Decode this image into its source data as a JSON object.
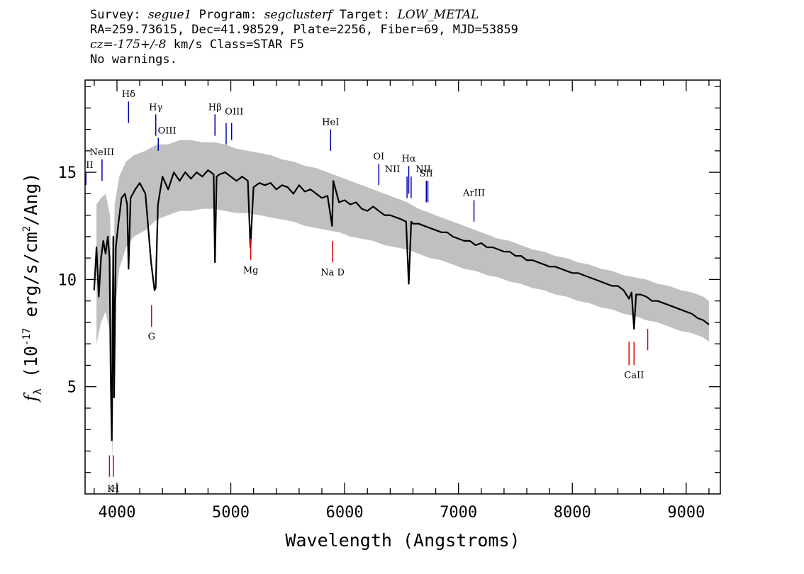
{
  "header": {
    "line1": {
      "survey_label": "Survey: ",
      "survey": "segue1",
      "program_label": " Program: ",
      "program": "segclusterf",
      "target_label": " Target: ",
      "target": "LOW_METAL"
    },
    "line2": "RA=259.73615, Dec=41.98529, Plate=2256, Fiber=69, MJD=53859",
    "line3": {
      "cz_label": "cz=",
      "cz_value": "-175+/-8",
      "rest": " km/s Class=STAR F5"
    },
    "line4": "No warnings."
  },
  "chart_data": {
    "type": "line",
    "title": "",
    "xlabel": "Wavelength (Angstroms)",
    "ylabel_prefix": "f",
    "ylabel_sub": "λ",
    "ylabel_mid": " (10",
    "ylabel_exp": "-17",
    "ylabel_units": " erg/s/cm",
    "ylabel_exp2": "2",
    "ylabel_end": "/Ang)",
    "xlim": [
      3720,
      9300
    ],
    "ylim": [
      0,
      19.3
    ],
    "xticks_major": [
      4000,
      5000,
      6000,
      7000,
      8000,
      9000
    ],
    "xtick_labels": [
      "4000",
      "5000",
      "6000",
      "7000",
      "8000",
      "9000"
    ],
    "yticks_major": [
      5,
      10,
      15
    ],
    "ytick_labels": [
      "5",
      "10",
      "15"
    ],
    "grid": false,
    "colors": {
      "flux": "#000000",
      "error": "#c0c0c0",
      "emission": "#0000aa",
      "absorption": "#dd0000"
    },
    "series": [
      {
        "name": "flux",
        "x": [
          3800,
          3820,
          3840,
          3860,
          3880,
          3900,
          3920,
          3935,
          3945,
          3955,
          3968,
          3975,
          3990,
          4010,
          4040,
          4070,
          4090,
          4102,
          4120,
          4160,
          4200,
          4250,
          4300,
          4330,
          4340,
          4360,
          4400,
          4450,
          4500,
          4550,
          4600,
          4650,
          4700,
          4750,
          4800,
          4850,
          4861,
          4875,
          4900,
          4950,
          5000,
          5050,
          5100,
          5150,
          5172,
          5200,
          5250,
          5300,
          5350,
          5400,
          5450,
          5500,
          5550,
          5600,
          5650,
          5700,
          5750,
          5800,
          5850,
          5890,
          5900,
          5950,
          6000,
          6050,
          6100,
          6150,
          6200,
          6250,
          6300,
          6350,
          6400,
          6450,
          6500,
          6540,
          6563,
          6585,
          6600,
          6650,
          6700,
          6750,
          6800,
          6850,
          6900,
          6950,
          7000,
          7050,
          7100,
          7150,
          7200,
          7250,
          7300,
          7350,
          7400,
          7450,
          7500,
          7550,
          7600,
          7650,
          7700,
          7750,
          7800,
          7850,
          7900,
          7950,
          8000,
          8050,
          8100,
          8150,
          8200,
          8250,
          8300,
          8350,
          8400,
          8450,
          8498,
          8520,
          8542,
          8560,
          8600,
          8650,
          8700,
          8750,
          8800,
          8850,
          8900,
          8950,
          9000,
          9050,
          9100,
          9150,
          9200
        ],
        "values": [
          9.5,
          11.5,
          9.2,
          11.0,
          11.8,
          11.2,
          12.0,
          11.0,
          5.5,
          2.5,
          12.0,
          4.5,
          11.5,
          12.5,
          13.8,
          14.0,
          13.5,
          10.5,
          13.8,
          14.2,
          14.5,
          14.0,
          10.8,
          9.5,
          9.6,
          13.5,
          14.8,
          14.2,
          15.0,
          14.6,
          15.0,
          14.7,
          15.0,
          14.8,
          15.1,
          14.9,
          10.8,
          14.8,
          14.9,
          15.0,
          14.8,
          14.6,
          14.8,
          14.6,
          11.5,
          14.3,
          14.5,
          14.4,
          14.5,
          14.2,
          14.4,
          14.3,
          14.0,
          14.4,
          14.1,
          14.2,
          14.0,
          13.8,
          13.9,
          12.5,
          14.6,
          13.6,
          13.7,
          13.5,
          13.6,
          13.3,
          13.2,
          13.4,
          13.2,
          13.0,
          13.0,
          12.9,
          12.8,
          12.7,
          9.8,
          12.7,
          12.6,
          12.6,
          12.5,
          12.4,
          12.3,
          12.2,
          12.2,
          12.0,
          11.9,
          11.8,
          11.8,
          11.6,
          11.7,
          11.5,
          11.5,
          11.4,
          11.3,
          11.3,
          11.1,
          11.1,
          10.9,
          10.9,
          10.8,
          10.7,
          10.6,
          10.6,
          10.5,
          10.4,
          10.3,
          10.3,
          10.2,
          10.1,
          10.0,
          9.9,
          9.8,
          9.7,
          9.7,
          9.5,
          9.1,
          9.4,
          7.7,
          9.3,
          9.3,
          9.2,
          9.0,
          9.0,
          8.9,
          8.8,
          8.7,
          8.6,
          8.5,
          8.4,
          8.2,
          8.1,
          7.9
        ]
      },
      {
        "name": "error_band",
        "x": [
          3820,
          3860,
          3900,
          3940,
          3960,
          3980,
          4020,
          4080,
          4150,
          4250,
          4350,
          4450,
          4550,
          4650,
          4750,
          4850,
          4950,
          5050,
          5150,
          5250,
          5350,
          5450,
          5550,
          5650,
          5750,
          5850,
          5950,
          6050,
          6150,
          6250,
          6350,
          6450,
          6550,
          6650,
          6750,
          6850,
          6950,
          7050,
          7150,
          7250,
          7350,
          7450,
          7550,
          7650,
          7750,
          7850,
          7950,
          8050,
          8150,
          8250,
          8350,
          8450,
          8550,
          8650,
          8750,
          8850,
          8950,
          9050,
          9150,
          9200
        ],
        "upper": [
          13.5,
          13.8,
          14.0,
          13.0,
          7.0,
          13.5,
          14.8,
          15.5,
          15.8,
          16.0,
          16.3,
          16.3,
          16.5,
          16.5,
          16.4,
          16.4,
          16.3,
          16.1,
          16.0,
          15.9,
          15.8,
          15.6,
          15.5,
          15.3,
          15.2,
          15.0,
          14.8,
          14.6,
          14.4,
          14.2,
          14.0,
          13.8,
          13.6,
          13.3,
          13.1,
          12.9,
          12.7,
          12.5,
          12.3,
          12.1,
          11.9,
          11.8,
          11.6,
          11.4,
          11.3,
          11.1,
          11.0,
          10.8,
          10.7,
          10.5,
          10.4,
          10.2,
          10.1,
          10.0,
          9.8,
          9.7,
          9.5,
          9.4,
          9.2,
          9.0
        ],
        "lower": [
          7.0,
          8.0,
          8.5,
          7.5,
          1.5,
          8.5,
          10.5,
          11.5,
          12.0,
          12.3,
          12.8,
          13.0,
          13.2,
          13.2,
          13.3,
          13.3,
          13.2,
          13.1,
          13.1,
          13.0,
          12.9,
          12.8,
          12.7,
          12.5,
          12.4,
          12.3,
          12.2,
          12.0,
          11.9,
          11.8,
          11.6,
          11.5,
          11.4,
          11.2,
          11.0,
          10.9,
          10.7,
          10.5,
          10.4,
          10.2,
          10.1,
          9.9,
          9.8,
          9.6,
          9.5,
          9.3,
          9.2,
          9.0,
          8.9,
          8.7,
          8.6,
          8.4,
          8.3,
          8.1,
          8.0,
          7.8,
          7.6,
          7.5,
          7.3,
          7.1
        ]
      }
    ],
    "emission_lines": [
      {
        "label": "OII",
        "x": 3727,
        "y0": 14.4,
        "y1": 15.0,
        "tx": 3727,
        "ty": 15.2
      },
      {
        "label": "NeIII",
        "x": 3869,
        "y0": 14.6,
        "y1": 15.6,
        "tx": 3869,
        "ty": 15.8
      },
      {
        "label": "Hδ",
        "x": 4102,
        "y0": 17.3,
        "y1": 18.3,
        "tx": 4102,
        "ty": 18.5
      },
      {
        "label": "Hγ",
        "x": 4341,
        "y0": 16.7,
        "y1": 17.7,
        "tx": 4341,
        "ty": 17.9
      },
      {
        "label": "OIII",
        "x": 4363,
        "y0": 16.0,
        "y1": 16.6,
        "tx": 4440,
        "ty": 16.8
      },
      {
        "label": "Hβ",
        "x": 4861,
        "y0": 16.7,
        "y1": 17.7,
        "tx": 4861,
        "ty": 17.9
      },
      {
        "label": "OIII",
        "x": 4959,
        "y0": 16.3,
        "y1": 17.3,
        "tx": 5030,
        "ty": 17.7
      },
      {
        "label": "OIII",
        "x": 5007,
        "y0": 16.5,
        "y1": 17.3,
        "tx": null,
        "ty": null
      },
      {
        "label": "HeI",
        "x": 5876,
        "y0": 16.0,
        "y1": 17.0,
        "tx": 5876,
        "ty": 17.2
      },
      {
        "label": "OI",
        "x": 6300,
        "y0": 14.4,
        "y1": 15.4,
        "tx": 6300,
        "ty": 15.6
      },
      {
        "label": "NII",
        "x": 6548,
        "y0": 13.8,
        "y1": 14.8,
        "tx": 6420,
        "ty": 15.0
      },
      {
        "label": "Hα",
        "x": 6563,
        "y0": 14.0,
        "y1": 15.3,
        "tx": 6563,
        "ty": 15.5
      },
      {
        "label": "NII",
        "x": 6584,
        "y0": 13.8,
        "y1": 14.8,
        "tx": 6690,
        "ty": 15.0
      },
      {
        "label": "SII",
        "x": 6717,
        "y0": 13.6,
        "y1": 14.6,
        "tx": 6717,
        "ty": 14.8
      },
      {
        "label": "SII",
        "x": 6731,
        "y0": 13.6,
        "y1": 14.6,
        "tx": null,
        "ty": null
      },
      {
        "label": "ArIII",
        "x": 7136,
        "y0": 12.7,
        "y1": 13.7,
        "tx": 7136,
        "ty": 13.9
      }
    ],
    "absorption_lines": [
      {
        "label": "K",
        "x": 3934,
        "y0": 0.8,
        "y1": 1.8,
        "tx": 3945,
        "ty": 0.1
      },
      {
        "label": "H",
        "x": 3969,
        "y0": 0.8,
        "y1": 1.8,
        "tx": 3985,
        "ty": 0.1
      },
      {
        "label": "G",
        "x": 4304,
        "y0": 7.8,
        "y1": 8.8,
        "tx": 4304,
        "ty": 7.2
      },
      {
        "label": "Mg",
        "x": 5175,
        "y0": 10.9,
        "y1": 11.9,
        "tx": 5175,
        "ty": 10.3
      },
      {
        "label": "Na D",
        "x": 5894,
        "y0": 10.8,
        "y1": 11.8,
        "tx": 5894,
        "ty": 10.2
      },
      {
        "label": "CaII",
        "x": 8498,
        "y0": 6.0,
        "y1": 7.1,
        "tx": 8542,
        "ty": 5.4
      },
      {
        "label": "",
        "x": 8542,
        "y0": 6.0,
        "y1": 7.1,
        "tx": null,
        "ty": null
      },
      {
        "label": "",
        "x": 8662,
        "y0": 6.7,
        "y1": 7.7,
        "tx": null,
        "ty": null
      }
    ]
  }
}
